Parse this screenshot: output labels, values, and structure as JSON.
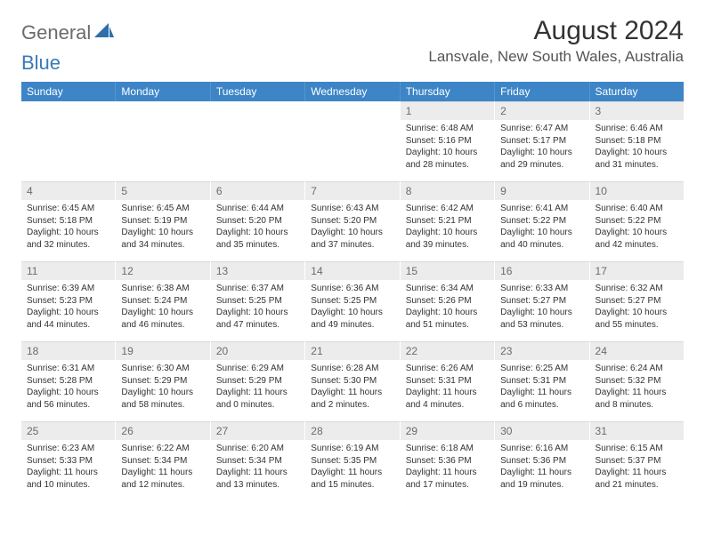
{
  "logo": {
    "part1": "General",
    "part2": "Blue"
  },
  "title": "August 2024",
  "location": "Lansvale, New South Wales, Australia",
  "colors": {
    "header_bg": "#3d85c6",
    "header_text": "#ffffff",
    "daynum_bg": "#ececec",
    "daynum_text": "#6b6b6b",
    "body_text": "#333333",
    "logo_gray": "#6b6b6b",
    "logo_blue": "#3a7ab8"
  },
  "day_headers": [
    "Sunday",
    "Monday",
    "Tuesday",
    "Wednesday",
    "Thursday",
    "Friday",
    "Saturday"
  ],
  "weeks": [
    [
      {
        "n": "",
        "sr": "",
        "ss": "",
        "dl": ""
      },
      {
        "n": "",
        "sr": "",
        "ss": "",
        "dl": ""
      },
      {
        "n": "",
        "sr": "",
        "ss": "",
        "dl": ""
      },
      {
        "n": "",
        "sr": "",
        "ss": "",
        "dl": ""
      },
      {
        "n": "1",
        "sr": "Sunrise: 6:48 AM",
        "ss": "Sunset: 5:16 PM",
        "dl": "Daylight: 10 hours and 28 minutes."
      },
      {
        "n": "2",
        "sr": "Sunrise: 6:47 AM",
        "ss": "Sunset: 5:17 PM",
        "dl": "Daylight: 10 hours and 29 minutes."
      },
      {
        "n": "3",
        "sr": "Sunrise: 6:46 AM",
        "ss": "Sunset: 5:18 PM",
        "dl": "Daylight: 10 hours and 31 minutes."
      }
    ],
    [
      {
        "n": "4",
        "sr": "Sunrise: 6:45 AM",
        "ss": "Sunset: 5:18 PM",
        "dl": "Daylight: 10 hours and 32 minutes."
      },
      {
        "n": "5",
        "sr": "Sunrise: 6:45 AM",
        "ss": "Sunset: 5:19 PM",
        "dl": "Daylight: 10 hours and 34 minutes."
      },
      {
        "n": "6",
        "sr": "Sunrise: 6:44 AM",
        "ss": "Sunset: 5:20 PM",
        "dl": "Daylight: 10 hours and 35 minutes."
      },
      {
        "n": "7",
        "sr": "Sunrise: 6:43 AM",
        "ss": "Sunset: 5:20 PM",
        "dl": "Daylight: 10 hours and 37 minutes."
      },
      {
        "n": "8",
        "sr": "Sunrise: 6:42 AM",
        "ss": "Sunset: 5:21 PM",
        "dl": "Daylight: 10 hours and 39 minutes."
      },
      {
        "n": "9",
        "sr": "Sunrise: 6:41 AM",
        "ss": "Sunset: 5:22 PM",
        "dl": "Daylight: 10 hours and 40 minutes."
      },
      {
        "n": "10",
        "sr": "Sunrise: 6:40 AM",
        "ss": "Sunset: 5:22 PM",
        "dl": "Daylight: 10 hours and 42 minutes."
      }
    ],
    [
      {
        "n": "11",
        "sr": "Sunrise: 6:39 AM",
        "ss": "Sunset: 5:23 PM",
        "dl": "Daylight: 10 hours and 44 minutes."
      },
      {
        "n": "12",
        "sr": "Sunrise: 6:38 AM",
        "ss": "Sunset: 5:24 PM",
        "dl": "Daylight: 10 hours and 46 minutes."
      },
      {
        "n": "13",
        "sr": "Sunrise: 6:37 AM",
        "ss": "Sunset: 5:25 PM",
        "dl": "Daylight: 10 hours and 47 minutes."
      },
      {
        "n": "14",
        "sr": "Sunrise: 6:36 AM",
        "ss": "Sunset: 5:25 PM",
        "dl": "Daylight: 10 hours and 49 minutes."
      },
      {
        "n": "15",
        "sr": "Sunrise: 6:34 AM",
        "ss": "Sunset: 5:26 PM",
        "dl": "Daylight: 10 hours and 51 minutes."
      },
      {
        "n": "16",
        "sr": "Sunrise: 6:33 AM",
        "ss": "Sunset: 5:27 PM",
        "dl": "Daylight: 10 hours and 53 minutes."
      },
      {
        "n": "17",
        "sr": "Sunrise: 6:32 AM",
        "ss": "Sunset: 5:27 PM",
        "dl": "Daylight: 10 hours and 55 minutes."
      }
    ],
    [
      {
        "n": "18",
        "sr": "Sunrise: 6:31 AM",
        "ss": "Sunset: 5:28 PM",
        "dl": "Daylight: 10 hours and 56 minutes."
      },
      {
        "n": "19",
        "sr": "Sunrise: 6:30 AM",
        "ss": "Sunset: 5:29 PM",
        "dl": "Daylight: 10 hours and 58 minutes."
      },
      {
        "n": "20",
        "sr": "Sunrise: 6:29 AM",
        "ss": "Sunset: 5:29 PM",
        "dl": "Daylight: 11 hours and 0 minutes."
      },
      {
        "n": "21",
        "sr": "Sunrise: 6:28 AM",
        "ss": "Sunset: 5:30 PM",
        "dl": "Daylight: 11 hours and 2 minutes."
      },
      {
        "n": "22",
        "sr": "Sunrise: 6:26 AM",
        "ss": "Sunset: 5:31 PM",
        "dl": "Daylight: 11 hours and 4 minutes."
      },
      {
        "n": "23",
        "sr": "Sunrise: 6:25 AM",
        "ss": "Sunset: 5:31 PM",
        "dl": "Daylight: 11 hours and 6 minutes."
      },
      {
        "n": "24",
        "sr": "Sunrise: 6:24 AM",
        "ss": "Sunset: 5:32 PM",
        "dl": "Daylight: 11 hours and 8 minutes."
      }
    ],
    [
      {
        "n": "25",
        "sr": "Sunrise: 6:23 AM",
        "ss": "Sunset: 5:33 PM",
        "dl": "Daylight: 11 hours and 10 minutes."
      },
      {
        "n": "26",
        "sr": "Sunrise: 6:22 AM",
        "ss": "Sunset: 5:34 PM",
        "dl": "Daylight: 11 hours and 12 minutes."
      },
      {
        "n": "27",
        "sr": "Sunrise: 6:20 AM",
        "ss": "Sunset: 5:34 PM",
        "dl": "Daylight: 11 hours and 13 minutes."
      },
      {
        "n": "28",
        "sr": "Sunrise: 6:19 AM",
        "ss": "Sunset: 5:35 PM",
        "dl": "Daylight: 11 hours and 15 minutes."
      },
      {
        "n": "29",
        "sr": "Sunrise: 6:18 AM",
        "ss": "Sunset: 5:36 PM",
        "dl": "Daylight: 11 hours and 17 minutes."
      },
      {
        "n": "30",
        "sr": "Sunrise: 6:16 AM",
        "ss": "Sunset: 5:36 PM",
        "dl": "Daylight: 11 hours and 19 minutes."
      },
      {
        "n": "31",
        "sr": "Sunrise: 6:15 AM",
        "ss": "Sunset: 5:37 PM",
        "dl": "Daylight: 11 hours and 21 minutes."
      }
    ]
  ]
}
